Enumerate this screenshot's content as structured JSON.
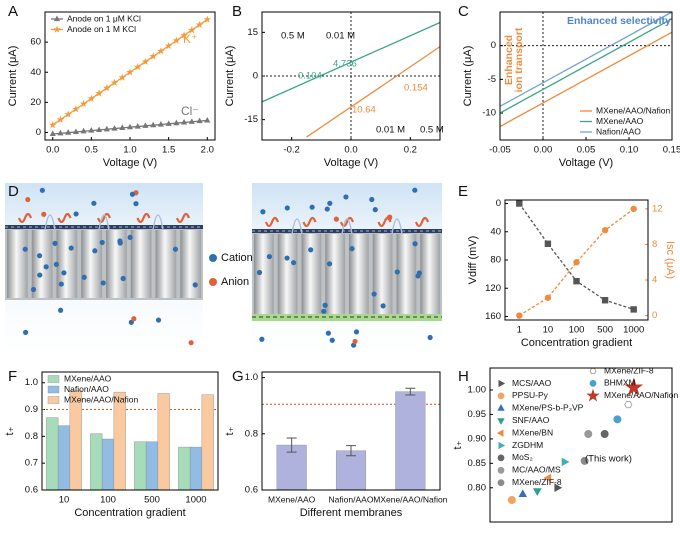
{
  "chart_data": [
    {
      "label": "A",
      "type": "line",
      "x": [
        0,
        0.1,
        0.2,
        0.3,
        0.4,
        0.5,
        0.6,
        0.7,
        0.8,
        0.9,
        1.0,
        1.1,
        1.2,
        1.3,
        1.4,
        1.5,
        1.6,
        1.7,
        1.8,
        1.9,
        2.0
      ],
      "xlim": [
        -0.1,
        2.1
      ],
      "xticks": [
        {
          "value": 0,
          "label": "0.0"
        },
        0.5,
        {
          "value": 1,
          "label": "1.0"
        },
        1.5,
        {
          "value": 2,
          "label": "2.0"
        }
      ],
      "ylim": [
        -5,
        80
      ],
      "yticks": [
        0,
        20,
        40,
        60
      ],
      "x_label": "Voltage (V)",
      "y_label": "Current (μA)",
      "legend": "upper left",
      "series": [
        {
          "name": "Anode on 1 μM KCl",
          "color": "#777777",
          "marker": "triangle",
          "values": [
            -1,
            -0.55,
            -0.1,
            0.35,
            0.8,
            1.25,
            1.7,
            2.15,
            2.6,
            3.05,
            3.5,
            3.95,
            4.4,
            4.85,
            5.3,
            5.75,
            6.2,
            6.65,
            7.1,
            7.55,
            8
          ]
        },
        {
          "name": "Anode on 1  M KCl",
          "color": "#f59a3c",
          "marker": "star",
          "values": [
            5,
            8.5,
            12,
            15.5,
            19,
            22.5,
            26,
            29.5,
            33,
            36.5,
            40,
            43.5,
            47,
            50.5,
            54,
            57.5,
            61,
            64.5,
            68,
            71.5,
            75
          ]
        }
      ],
      "annotations": [
        {
          "text": "K⁺",
          "color": "#f59a3c"
        },
        {
          "text": "Cl⁻",
          "color": "#777777"
        }
      ]
    },
    {
      "label": "B",
      "type": "line",
      "xlim": [
        -0.3,
        0.3
      ],
      "xticks": [
        -0.2,
        {
          "value": 0,
          "label": "0.0"
        },
        0.2
      ],
      "ylim": [
        -22,
        22
      ],
      "yticks": [
        -15,
        0,
        15
      ],
      "zero_lines": true,
      "x_label": "Voltage (V)",
      "y_label": "Current (μA)",
      "series": [
        {
          "color": "#3aa58a",
          "x": [
            -0.3,
            0.3
          ],
          "values": [
            -8.9,
            18.4
          ]
        },
        {
          "color": "#f08a3c",
          "x": [
            -0.15,
            0.3
          ],
          "values": [
            -21,
            10.1
          ]
        }
      ],
      "annotations": [
        {
          "text": "0.104",
          "color": "#3aa58a"
        },
        {
          "text": "4.736",
          "color": "#3aa58a"
        },
        {
          "text": "0.154",
          "color": "#f08a3c"
        },
        {
          "text": "10.64",
          "color": "#f08a3c"
        },
        {
          "text": "0.5 M",
          "color": "#111111"
        },
        {
          "text": "0.01 M",
          "color": "#111111"
        },
        {
          "text": "0.01 M",
          "color": "#111111"
        },
        {
          "text": "0.5 M",
          "color": "#111111"
        }
      ]
    },
    {
      "label": "C",
      "type": "line",
      "x": [
        -0.05,
        0.15
      ],
      "xlim": [
        -0.05,
        0.15
      ],
      "xticks": [
        -0.05,
        {
          "value": 0,
          "label": "0.00"
        },
        0.05,
        {
          "value": 0.1,
          "label": "0.10"
        },
        0.15
      ],
      "ylim": [
        -14,
        5
      ],
      "yticks": [
        -10,
        -5,
        0
      ],
      "zero_lines": true,
      "x_label": "Voltage (V)",
      "y_label": "Current (μA)",
      "legend": "lower right",
      "series": [
        {
          "name": "MXene/AAO/Nafion",
          "color": "#f08a3c",
          "values": [
            -12,
            2
          ]
        },
        {
          "name": "MXene/AAO",
          "color": "#3aa58a",
          "values": [
            -10,
            4
          ]
        },
        {
          "name": "Nafion/AAO",
          "color": "#6fa0d8",
          "values": [
            -9,
            5
          ]
        }
      ],
      "annotations": [
        {
          "text": "Enhanced selectivity",
          "color": "#4f86c9"
        },
        {
          "text": "Enhanced",
          "color": "#f08a3c"
        },
        {
          "text": "ion transport",
          "color": "#f08a3c"
        }
      ]
    },
    {
      "label": "E",
      "type": "line",
      "categories": [
        "1",
        "10",
        "100",
        "500",
        "1000"
      ],
      "ylim": [
        165,
        -5
      ],
      "yticks": [
        0,
        40,
        80,
        120,
        160
      ],
      "y2lim": [
        -0.5,
        13
      ],
      "y2ticks": [
        0,
        4,
        8,
        12
      ],
      "x_label": "Concentration gradient",
      "y_label": "Vdiff (mV)",
      "y2_label": "Isc (μA)",
      "series": [
        {
          "color": "#555555",
          "marker": "square",
          "dashed": true,
          "values": [
            0,
            57,
            110,
            137,
            150
          ]
        },
        {
          "color": "#f08a3c",
          "marker": "circle",
          "dashed": true,
          "axis": "y2",
          "values": [
            0,
            2,
            6,
            9.6,
            12
          ]
        }
      ]
    },
    {
      "label": "F",
      "type": "bar",
      "categories": [
        "10",
        "100",
        "500",
        "1000"
      ],
      "ylim": [
        0.6,
        1.04
      ],
      "yticks": [
        0.6,
        0.7,
        0.8,
        0.9,
        {
          "value": 1,
          "label": "1.0"
        }
      ],
      "ref_line": 0.9,
      "x_label": "Concentration gradient",
      "y_label": "t₊",
      "legend": "upper left",
      "series": [
        {
          "name": "MXene/AAO",
          "color": "#a6dcb9",
          "values": [
            0.87,
            0.81,
            0.78,
            0.76
          ]
        },
        {
          "name": "Nafion/AAO",
          "color": "#93bce4",
          "values": [
            0.84,
            0.79,
            0.78,
            0.76
          ]
        },
        {
          "name": "MXene/AAO/Nafion",
          "color": "#f9c9a0",
          "values": [
            0.97,
            0.965,
            0.96,
            0.955
          ]
        }
      ]
    },
    {
      "label": "G",
      "type": "bar",
      "categories": [
        "MXene/AAO",
        "Nafion/AAO",
        "MXene/AAO/Nafion"
      ],
      "ylim": [
        0.6,
        1.02
      ],
      "yticks": [
        0.6,
        0.8,
        {
          "value": 1,
          "label": "1.0"
        }
      ],
      "ref_line": 0.905,
      "x_label": "Different membranes",
      "y_label": "t₊",
      "series": [
        {
          "color": "#b0b2de",
          "values": [
            0.76,
            0.74,
            0.95
          ],
          "errors": [
            0.025,
            0.018,
            0.012
          ]
        }
      ]
    },
    {
      "label": "H",
      "type": "scatter",
      "xlim": [
        0,
        10
      ],
      "ylim": [
        0.73,
        1.045
      ],
      "yticks": [
        {
          "value": 0.8,
          "label": "0.80"
        },
        0.85,
        {
          "value": 0.9,
          "label": "0.90"
        },
        0.95,
        {
          "value": 1,
          "label": "1.00"
        }
      ],
      "y_label": "t₊",
      "legend": "upper left",
      "series": [
        {
          "name": "MCS/AAO",
          "color": "#555555",
          "marker": "triangle-right",
          "x": [
            3.7
          ],
          "values": [
            0.8
          ]
        },
        {
          "name": "PPSU-Py",
          "color": "#f4a460",
          "marker": "circle",
          "x": [
            1.2
          ],
          "values": [
            0.775
          ]
        },
        {
          "name": "MXene/PS-b-P₂VP",
          "color": "#3a6fb5",
          "marker": "triangle",
          "x": [
            1.8
          ],
          "values": [
            0.787
          ]
        },
        {
          "name": "SNF/AAO",
          "color": "#2e9e8e",
          "marker": "triangle-down",
          "x": [
            2.6
          ],
          "values": [
            0.793
          ]
        },
        {
          "name": "MXene/BN",
          "color": "#f08a3c",
          "marker": "triangle-left",
          "x": [
            3.2
          ],
          "values": [
            0.82
          ]
        },
        {
          "name": "ZGDHM",
          "color": "#3fb0b0",
          "marker": "triangle-right",
          "x": [
            4.1
          ],
          "values": [
            0.853
          ]
        },
        {
          "name": "MoS₂",
          "color": "#666666",
          "marker": "circle",
          "x": [
            6.3
          ],
          "values": [
            0.91
          ]
        },
        {
          "name": "MC/AAO/MS",
          "color": "#999999",
          "marker": "circle",
          "x": [
            5.4
          ],
          "values": [
            0.91
          ]
        },
        {
          "name": "MXene/ZIF-8",
          "color": "#8a8a8a",
          "marker": "circle",
          "x": [
            5.2
          ],
          "values": [
            0.855
          ]
        },
        {
          "name": "MXene/ZIF-8",
          "color": "#999999",
          "marker": "hex",
          "x": [
            7.6
          ],
          "values": [
            0.97
          ]
        },
        {
          "name": "BHMXM",
          "color": "#4aa0d0",
          "marker": "circle",
          "x": [
            7.0
          ],
          "values": [
            0.94
          ]
        },
        {
          "name": "MXene/AAO/Nafion",
          "color": "#c0392b",
          "marker": "star",
          "x": [
            7.9
          ],
          "values": [
            1.005
          ]
        }
      ],
      "annotations": [
        {
          "text": "(This work)",
          "color": "#111111"
        }
      ]
    }
  ],
  "diagram": {
    "label": "D",
    "legend": [
      "Cation",
      "Anion"
    ]
  }
}
